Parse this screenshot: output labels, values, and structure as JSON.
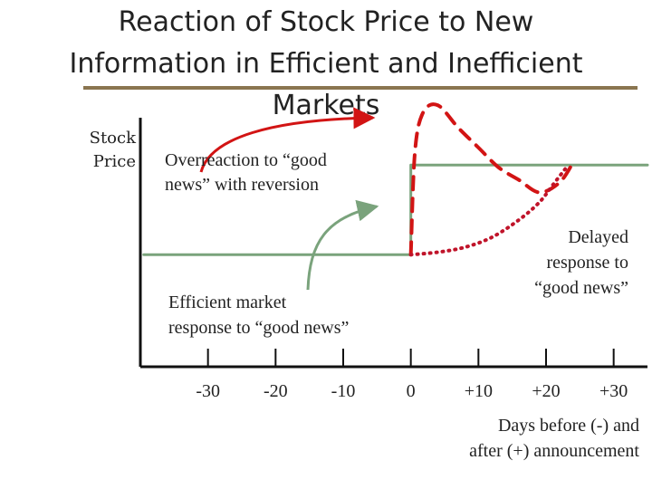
{
  "title_lines": [
    "Reaction of Stock Price to New",
    "Information in Efficient and Inefficient",
    "Markets"
  ],
  "annotations": {
    "overreaction": [
      "Overreaction to “good",
      "news” with reversion"
    ],
    "efficient": [
      "Efficient market",
      "response to “good news”"
    ],
    "delayed": [
      "Delayed",
      "response to",
      "“good news”"
    ]
  },
  "colors": {
    "efficient": "#7aa37c",
    "overreaction": "#d21414",
    "delayed": "#c0142a",
    "axis": "#111111",
    "rule": "#8a7550"
  },
  "chart_data": {
    "type": "line",
    "title": "Reaction of Stock Price to New Information in Efficient and Inefficient Markets",
    "ylabel": "Stock Price",
    "xlabel": "Days before (-) and after (+) announcement",
    "ylabel_lines": [
      "Stock",
      "Price"
    ],
    "xlabel_lines": [
      "Days before (-) and",
      "after (+) announcement"
    ],
    "x_ticks": [
      -30,
      -20,
      -10,
      0,
      10,
      20,
      30
    ],
    "x_tick_labels": [
      "-30",
      "-20",
      "-10",
      "0",
      "+10",
      "+20",
      "+30"
    ],
    "xlim": [
      -40,
      35
    ],
    "ylim": [
      0,
      10
    ],
    "series": [
      {
        "name": "Efficient market response to “good news”",
        "style": "solid",
        "points": [
          [
            -39.5,
            4.5
          ],
          [
            0,
            4.5
          ],
          [
            0,
            8.1
          ],
          [
            35,
            8.1
          ]
        ]
      },
      {
        "name": "Overreaction to “good news” with reversion",
        "style": "dashed",
        "points": [
          [
            0,
            4.5
          ],
          [
            0.6,
            8.6
          ],
          [
            1.8,
            10.2
          ],
          [
            4,
            10.5
          ],
          [
            7,
            9.6
          ],
          [
            10,
            8.8
          ],
          [
            13,
            8.0
          ],
          [
            16,
            7.5
          ],
          [
            19,
            7.0
          ],
          [
            22,
            7.4
          ],
          [
            24,
            8.2
          ]
        ]
      },
      {
        "name": "Delayed response to “good news”",
        "style": "dotted",
        "points": [
          [
            0,
            4.5
          ],
          [
            4,
            4.6
          ],
          [
            8,
            4.8
          ],
          [
            12,
            5.2
          ],
          [
            16,
            5.9
          ],
          [
            19,
            6.6
          ],
          [
            21,
            7.3
          ],
          [
            23,
            8.0
          ]
        ]
      }
    ]
  }
}
